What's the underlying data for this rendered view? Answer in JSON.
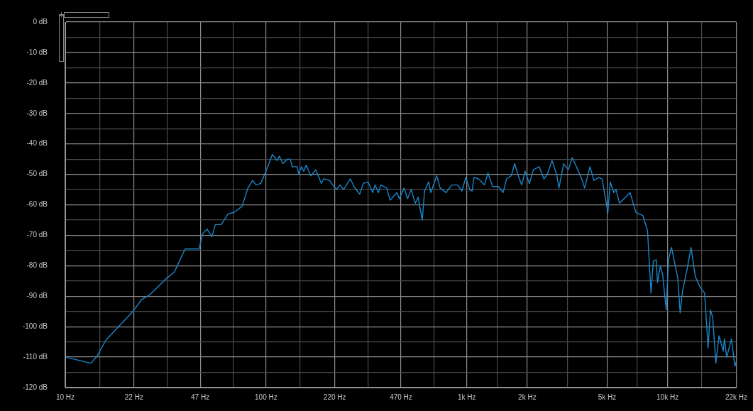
{
  "chart_data": {
    "type": "line",
    "color": "#1a86c8",
    "marker": "none",
    "grid": true,
    "log": "x",
    "x": [
      10,
      11.6,
      13.4,
      14.3,
      15.9,
      18.4,
      21.4,
      24.1,
      26.4,
      31.5,
      35,
      39.5,
      46.4,
      48.3,
      50.9,
      53.7,
      55.9,
      59.8,
      64.7,
      69.2,
      76,
      81.2,
      85.7,
      89.2,
      94.1,
      100.6,
      107.5,
      113.5,
      116.5,
      121.3,
      128,
      132,
      135,
      143,
      145.5,
      150,
      154,
      158.5,
      167,
      177,
      188.6,
      193.8,
      207,
      221,
      224,
      233.5,
      243,
      263,
      274,
      293,
      305,
      322,
      340,
      349,
      363,
      373,
      399,
      415,
      449,
      461.6,
      487,
      507,
      528,
      554,
      572,
      600,
      616,
      645,
      662,
      708,
      737,
      788,
      842,
      900,
      945,
      989,
      1035,
      1063,
      1086,
      1145,
      1224,
      1275,
      1344,
      1438,
      1516,
      1578,
      1665,
      1733,
      1794,
      1877,
      1954,
      2050,
      2146,
      2294,
      2421,
      2520,
      2657,
      2803,
      2878,
      3037,
      3205,
      3352,
      3518,
      3762,
      3863,
      4109,
      4298,
      4535,
      4721,
      5045,
      5183,
      5395,
      5541,
      5768,
      6505,
      6952,
      7534,
      7948,
      8274,
      8496,
      8774,
      8916,
      9205,
      9458,
      9847,
      10108,
      10464,
      11247,
      11560,
      11866,
      12521,
      13100,
      13746,
      14503,
      15302,
      15926,
      16354,
      16793,
      17395,
      18047,
      18937,
      19197,
      19712,
      20797,
      21651,
      22000
    ],
    "values": [
      -110,
      -111,
      -112,
      -110,
      -104.5,
      -100,
      -95.5,
      -91,
      -89.5,
      -84.5,
      -82,
      -74.5,
      -74.5,
      -69.5,
      -68,
      -70.5,
      -66.5,
      -66.5,
      -63,
      -62.5,
      -60.5,
      -54.5,
      -52,
      -53.5,
      -53,
      -48.5,
      -43.5,
      -45.5,
      -44,
      -46.5,
      -45,
      -45,
      -47.5,
      -47.5,
      -50,
      -47.5,
      -49,
      -47,
      -50.5,
      -48.5,
      -53,
      -51.5,
      -52,
      -54.5,
      -55,
      -53.5,
      -55,
      -51.5,
      -54,
      -56.5,
      -53,
      -52.5,
      -56,
      -53.5,
      -56,
      -53.5,
      -54.5,
      -58.5,
      -56,
      -58,
      -54.5,
      -58,
      -55,
      -59.5,
      -57.5,
      -65,
      -55.5,
      -52.5,
      -56,
      -50.5,
      -54.5,
      -56,
      -53.5,
      -53.5,
      -55.5,
      -51,
      -55,
      -55.5,
      -51,
      -51.5,
      -53.5,
      -49.5,
      -54,
      -54,
      -56,
      -51.5,
      -50.5,
      -46.5,
      -50,
      -53.5,
      -49,
      -53,
      -48.5,
      -47.5,
      -51.5,
      -50,
      -45.5,
      -50,
      -54.5,
      -46.5,
      -48.5,
      -44.5,
      -47.5,
      -52,
      -54.5,
      -47.5,
      -52,
      -51,
      -51.5,
      -62.5,
      -52.5,
      -56,
      -55,
      -59.5,
      -56,
      -62.5,
      -63.5,
      -68.5,
      -89,
      -78.5,
      -78,
      -85.5,
      -80,
      -83,
      -94.5,
      -78,
      -74,
      -84,
      -95.5,
      -88.5,
      -81,
      -74,
      -83.5,
      -87,
      -89,
      -107,
      -94.5,
      -97,
      -112,
      -103,
      -108,
      -104,
      -110,
      -104,
      -113,
      -111.5
    ],
    "xlim": [
      10,
      22000
    ],
    "xticks": [
      {
        "value": 10,
        "label": "10 Hz"
      },
      {
        "value": 14.8,
        "label": null
      },
      {
        "value": 22,
        "label": "22 Hz"
      },
      {
        "value": 32.2,
        "label": null
      },
      {
        "value": 47,
        "label": "47 Hz"
      },
      {
        "value": 68.6,
        "label": null
      },
      {
        "value": 100,
        "label": "100 Hz"
      },
      {
        "value": 148,
        "label": null
      },
      {
        "value": 220,
        "label": "220 Hz"
      },
      {
        "value": 322,
        "label": null
      },
      {
        "value": 470,
        "label": "470 Hz"
      },
      {
        "value": 686,
        "label": null
      },
      {
        "value": 1000,
        "label": "1k Hz"
      },
      {
        "value": 1414,
        "label": null
      },
      {
        "value": 2000,
        "label": "2k Hz"
      },
      {
        "value": 3162,
        "label": null
      },
      {
        "value": 5000,
        "label": "5k Hz"
      },
      {
        "value": 7071,
        "label": null
      },
      {
        "value": 10000,
        "label": "10k Hz"
      },
      {
        "value": 14832,
        "label": null
      },
      {
        "value": 22000,
        "label": "22k Hz"
      }
    ],
    "ylim": [
      -120,
      0
    ],
    "yticks": [
      {
        "value": 0,
        "label": "0 dB"
      },
      {
        "value": -5,
        "label": null
      },
      {
        "value": -10,
        "label": "-10 dB"
      },
      {
        "value": -15,
        "label": null
      },
      {
        "value": -20,
        "label": "-20 dB"
      },
      {
        "value": -25,
        "label": null
      },
      {
        "value": -30,
        "label": "-30 dB"
      },
      {
        "value": -35,
        "label": null
      },
      {
        "value": -40,
        "label": "-40 dB"
      },
      {
        "value": -45,
        "label": null
      },
      {
        "value": -50,
        "label": "-50 dB"
      },
      {
        "value": -55,
        "label": null
      },
      {
        "value": -60,
        "label": "-60 dB"
      },
      {
        "value": -65,
        "label": null
      },
      {
        "value": -70,
        "label": "-70 dB"
      },
      {
        "value": -75,
        "label": null
      },
      {
        "value": -80,
        "label": "-80 dB"
      },
      {
        "value": -85,
        "label": null
      },
      {
        "value": -90,
        "label": "-90 dB"
      },
      {
        "value": -95,
        "label": null
      },
      {
        "value": -100,
        "label": "-100 dB"
      },
      {
        "value": -105,
        "label": null
      },
      {
        "value": -110,
        "label": "-110 dB"
      },
      {
        "value": -115,
        "label": null
      },
      {
        "value": -120,
        "label": "-120 dB"
      }
    ]
  }
}
